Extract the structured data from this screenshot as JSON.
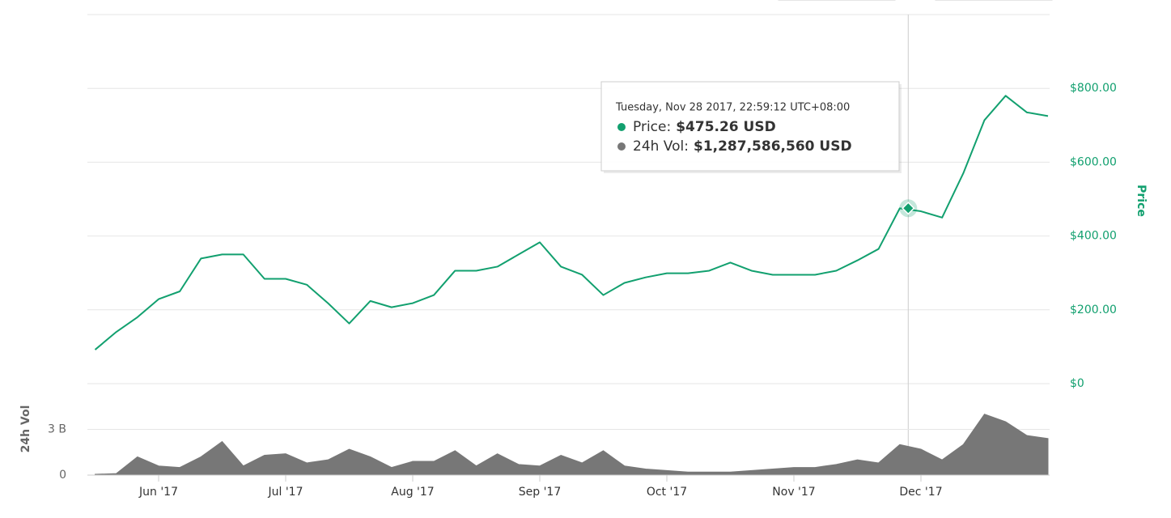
{
  "chart_data": [
    {
      "type": "line",
      "y_label": "Price",
      "color": "#12a06f",
      "grid": true,
      "ylim": [
        0,
        1000
      ],
      "yticks": [
        {
          "value": 0,
          "label": "$0"
        },
        {
          "value": 200,
          "label": "$200.00"
        },
        {
          "value": 400,
          "label": "$400.00"
        },
        {
          "value": 600,
          "label": "$600.00"
        },
        {
          "value": 800,
          "label": "$800.00"
        }
      ],
      "series": [
        {
          "name": "Price",
          "color": "#12a06f",
          "values": [
            92,
            140,
            180,
            229,
            250,
            339,
            350,
            350,
            284,
            284,
            268,
            218,
            163,
            224,
            207,
            218,
            240,
            306,
            306,
            317,
            350,
            383,
            317,
            295,
            240,
            273,
            288,
            299,
            299,
            306,
            328,
            306,
            295,
            295,
            295,
            306,
            334,
            365,
            475,
            467,
            450,
            570,
            714,
            780,
            735,
            725
          ]
        }
      ],
      "tooltip": {
        "date": "Tuesday, Nov 28 2017, 22:59:12 UTC+08:00",
        "price_name": "Price:",
        "price": 475.26,
        "price_label": "$475.26 USD",
        "volume_name": "24h Vol:",
        "volume": 1287586560,
        "volume_label": "$1,287,586,560 USD"
      }
    },
    {
      "type": "area",
      "y_label": "24h Vol",
      "color": "#777777",
      "grid": true,
      "ylim": [
        0,
        6000000000
      ],
      "yticks": [
        {
          "value": 0,
          "label": "0"
        },
        {
          "value": 3000000000,
          "label": "3 B"
        }
      ],
      "categories": [
        null,
        null,
        null,
        "Jun '17",
        null,
        null,
        null,
        null,
        null,
        "Jul '17",
        null,
        null,
        null,
        null,
        null,
        "Aug '17",
        null,
        null,
        null,
        null,
        null,
        "Sep '17",
        null,
        null,
        null,
        null,
        null,
        "Oct '17",
        null,
        null,
        null,
        null,
        null,
        "Nov '17",
        null,
        null,
        null,
        null,
        null,
        "Dec '17",
        null,
        null,
        null,
        null,
        null,
        null
      ],
      "series": [
        {
          "name": "24h Vol",
          "color": "#777777",
          "values": [
            50000000,
            100000000,
            1200000000,
            600000000,
            500000000,
            1200000000,
            2200000000,
            600000000,
            1300000000,
            1400000000,
            800000000,
            1000000000,
            1700000000,
            1200000000,
            500000000,
            900000000,
            900000000,
            1600000000,
            600000000,
            1400000000,
            700000000,
            600000000,
            1300000000,
            800000000,
            1600000000,
            600000000,
            400000000,
            300000000,
            200000000,
            200000000,
            200000000,
            300000000,
            400000000,
            500000000,
            500000000,
            700000000,
            1000000000,
            800000000,
            2000000000,
            1700000000,
            1000000000,
            2000000000,
            4000000000,
            3500000000,
            2600000000,
            2400000000
          ]
        }
      ]
    }
  ]
}
